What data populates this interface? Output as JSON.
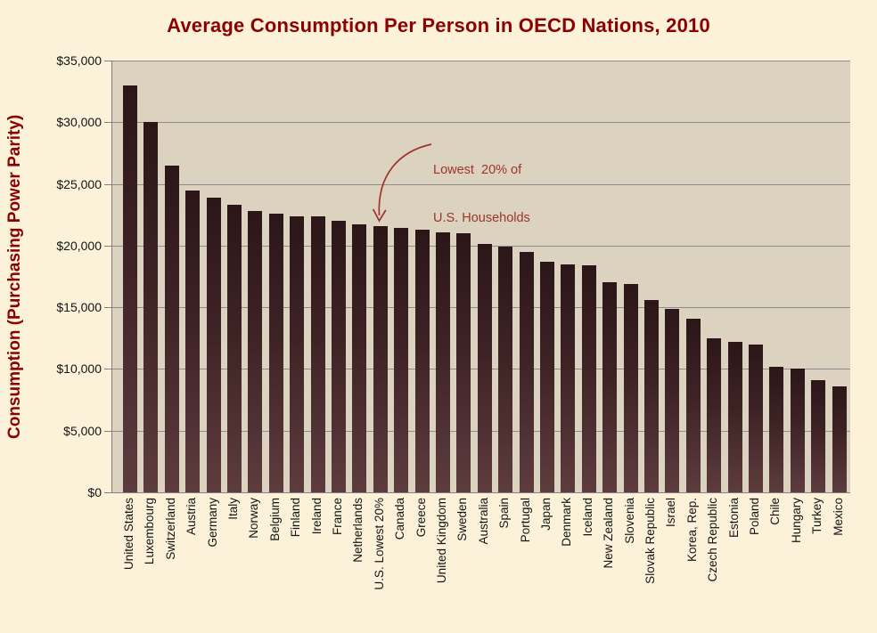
{
  "page": {
    "background_color": "#FBF2D9"
  },
  "chart_data": {
    "type": "bar",
    "title": "Average Consumption Per Person in OECD Nations, 2010",
    "ylabel": "Consumption (Purchasing Power Parity)",
    "xlabel": "",
    "ylim": [
      0,
      35000
    ],
    "ytick_step": 5000,
    "ytick_labels": [
      "$0",
      "$5,000",
      "$10,000",
      "$15,000",
      "$20,000",
      "$25,000",
      "$30,000",
      "$35,000"
    ],
    "grid": true,
    "legend": false,
    "categories": [
      "United States",
      "Luxembourg",
      "Switzerland",
      "Austria",
      "Germany",
      "Italy",
      "Norway",
      "Belgium",
      "Finland",
      "Ireland",
      "France",
      "Netherlands",
      "U.S. Lowest 20%",
      "Canada",
      "Greece",
      "United Kingdom",
      "Sweden",
      "Australia",
      "Spain",
      "Portugal",
      "Japan",
      "Denmark",
      "Iceland",
      "New Zealand",
      "Slovenia",
      "Slovak Republic",
      "Israel",
      "Korea, Rep.",
      "Czech Republic",
      "Estonia",
      "Poland",
      "Chile",
      "Hungary",
      "Turkey",
      "Mexico"
    ],
    "values": [
      33000,
      30000,
      26500,
      24500,
      23900,
      23300,
      22800,
      22600,
      22400,
      22400,
      22000,
      21700,
      21600,
      21400,
      21300,
      21100,
      21000,
      20100,
      19900,
      19500,
      18700,
      18500,
      18400,
      17000,
      16900,
      15600,
      14900,
      14100,
      12500,
      12200,
      12000,
      10200,
      10000,
      9100,
      8600
    ],
    "annotation": {
      "line1": "Lowest  20% of",
      "line2": "U.S. Households",
      "target_category": "U.S. Lowest 20%"
    },
    "colors": {
      "bar_top": "#2C1618",
      "bar_bottom": "#5E3C3E",
      "plot_background": "#DBD3BF",
      "gridline": "#8C8C8C",
      "axis": "#808080",
      "title": "#8B0000",
      "annotation": "#9E332B",
      "tick_text": "#141414"
    }
  }
}
